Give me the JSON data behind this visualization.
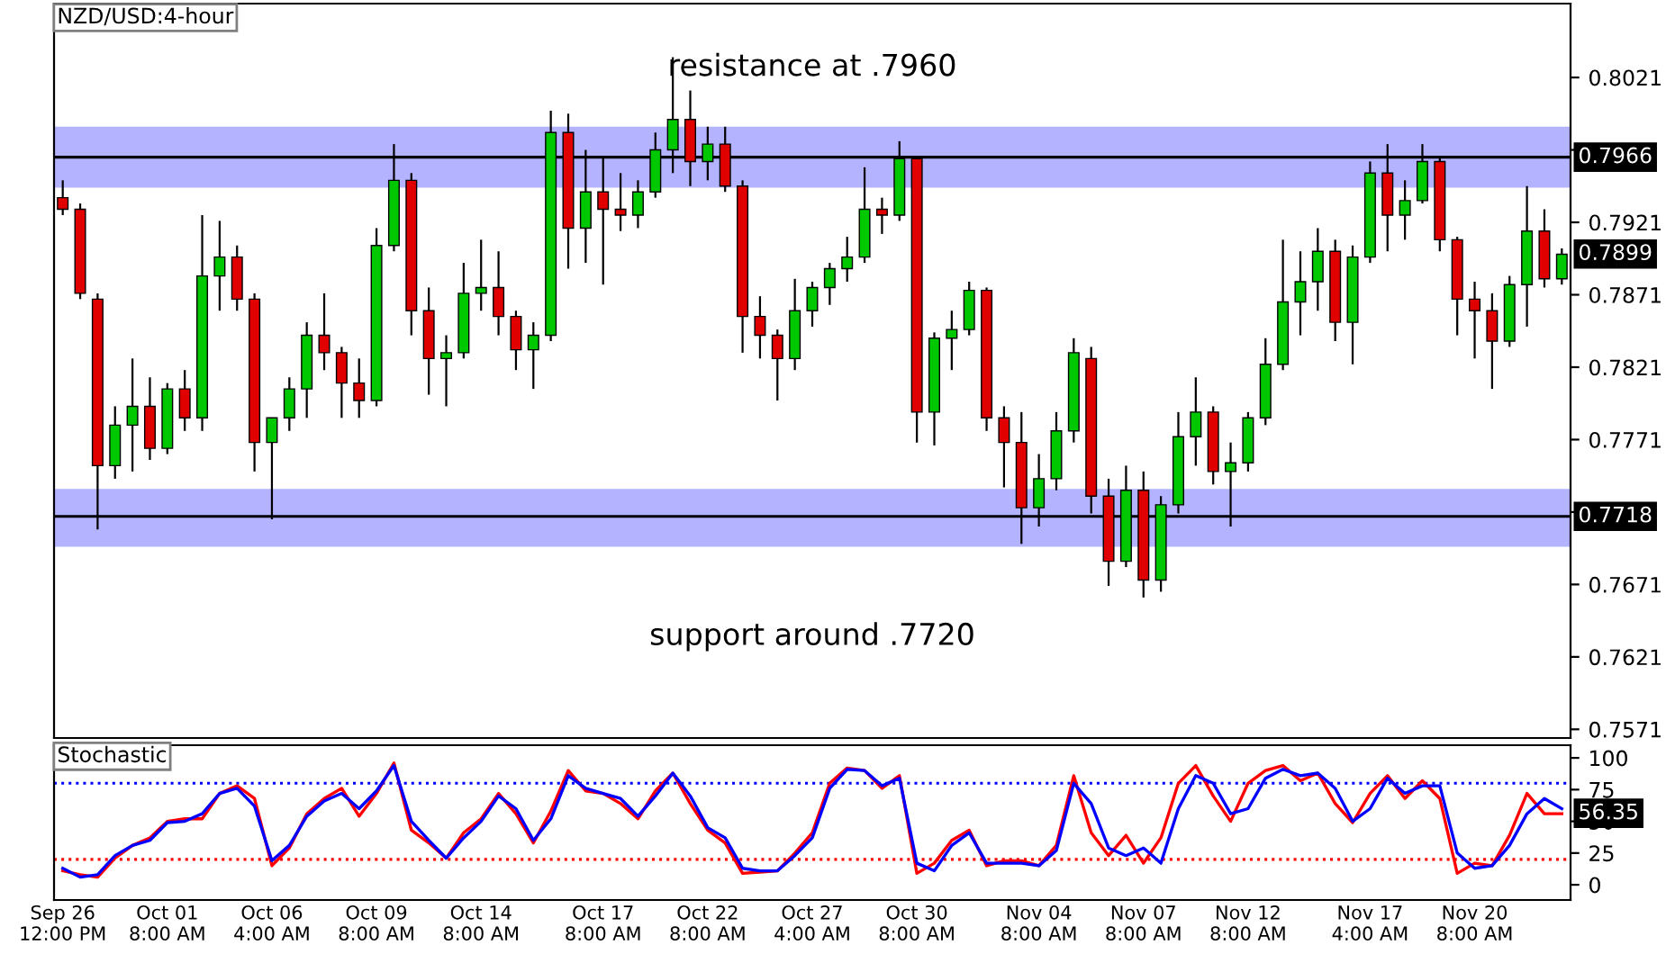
{
  "chart_data": [
    {
      "type": "candlestick",
      "title": "NZD/USD:4-hour",
      "categories": [
        null,
        null,
        null,
        null,
        null,
        null,
        null,
        null,
        null,
        null,
        null,
        null,
        null,
        null,
        null,
        null,
        null,
        null,
        null,
        null,
        null,
        null,
        null,
        null,
        null,
        null,
        null,
        null,
        null,
        null,
        null,
        null,
        null,
        null,
        null,
        null,
        null,
        null,
        null,
        null,
        null,
        null,
        null,
        null,
        null,
        null,
        null,
        null,
        null,
        null,
        null,
        null,
        null,
        null,
        null,
        null,
        null,
        null,
        null,
        null,
        null,
        null,
        null,
        null,
        null,
        null,
        null,
        null,
        null,
        null,
        null,
        null,
        null,
        null,
        null,
        null,
        null,
        null,
        null,
        null,
        null,
        null,
        null,
        null,
        null,
        null,
        null
      ],
      "ohlc": [
        [
          0.7938,
          0.795,
          0.7926,
          0.793
        ],
        [
          0.793,
          0.7934,
          0.7868,
          0.7872
        ],
        [
          0.7868,
          0.7872,
          0.7709,
          0.7753
        ],
        [
          0.7753,
          0.7794,
          0.7744,
          0.7781
        ],
        [
          0.7781,
          0.7827,
          0.7749,
          0.7794
        ],
        [
          0.7794,
          0.7814,
          0.7757,
          0.7765
        ],
        [
          0.7765,
          0.781,
          0.7761,
          0.7806
        ],
        [
          0.7806,
          0.7819,
          0.7777,
          0.7786
        ],
        [
          0.7786,
          0.7926,
          0.7777,
          0.7884
        ],
        [
          0.7884,
          0.7922,
          0.786,
          0.7897
        ],
        [
          0.7897,
          0.7905,
          0.786,
          0.7868
        ],
        [
          0.7868,
          0.7872,
          0.7749,
          0.7769
        ],
        [
          0.7769,
          0.7786,
          0.7716,
          0.7786
        ],
        [
          0.7786,
          0.7814,
          0.7777,
          0.7806
        ],
        [
          0.7806,
          0.7852,
          0.7786,
          0.7843
        ],
        [
          0.7843,
          0.7872,
          0.7819,
          0.7831
        ],
        [
          0.7831,
          0.7835,
          0.7786,
          0.781
        ],
        [
          0.781,
          0.7827,
          0.7786,
          0.7798
        ],
        [
          0.7798,
          0.7917,
          0.7794,
          0.7905
        ],
        [
          0.7905,
          0.7975,
          0.7901,
          0.795
        ],
        [
          0.795,
          0.7955,
          0.7843,
          0.786
        ],
        [
          0.786,
          0.7876,
          0.7802,
          0.7827
        ],
        [
          0.7827,
          0.7843,
          0.7794,
          0.7831
        ],
        [
          0.7831,
          0.7893,
          0.7827,
          0.7872
        ],
        [
          0.7872,
          0.7909,
          0.786,
          0.7876
        ],
        [
          0.7876,
          0.7901,
          0.7843,
          0.7856
        ],
        [
          0.7856,
          0.786,
          0.7819,
          0.7833
        ],
        [
          0.7833,
          0.7852,
          0.7806,
          0.7843
        ],
        [
          0.7843,
          0.7998,
          0.7839,
          0.7983
        ],
        [
          0.7983,
          0.7996,
          0.7889,
          0.7917
        ],
        [
          0.7917,
          0.7971,
          0.7893,
          0.7942
        ],
        [
          0.7942,
          0.7967,
          0.7878,
          0.793
        ],
        [
          0.793,
          0.7955,
          0.7915,
          0.7926
        ],
        [
          0.7926,
          0.795,
          0.7917,
          0.7942
        ],
        [
          0.7942,
          0.7983,
          0.7938,
          0.7971
        ],
        [
          0.7971,
          0.8035,
          0.7955,
          0.7992
        ],
        [
          0.7992,
          0.8012,
          0.7946,
          0.7963
        ],
        [
          0.7963,
          0.7987,
          0.795,
          0.7975
        ],
        [
          0.7975,
          0.7987,
          0.7942,
          0.7946
        ],
        [
          0.7946,
          0.795,
          0.7831,
          0.7856
        ],
        [
          0.7856,
          0.787,
          0.7827,
          0.7843
        ],
        [
          0.7843,
          0.7847,
          0.7798,
          0.7827
        ],
        [
          0.7827,
          0.7882,
          0.7819,
          0.786
        ],
        [
          0.786,
          0.788,
          0.7849,
          0.7876
        ],
        [
          0.7876,
          0.7893,
          0.7864,
          0.7889
        ],
        [
          0.7889,
          0.7911,
          0.788,
          0.7897
        ],
        [
          0.7897,
          0.7959,
          0.7893,
          0.793
        ],
        [
          0.793,
          0.7938,
          0.7913,
          0.7926
        ],
        [
          0.7926,
          0.7977,
          0.7922,
          0.7965
        ],
        [
          0.7965,
          0.7967,
          0.7769,
          0.779
        ],
        [
          0.779,
          0.7845,
          0.7767,
          0.7841
        ],
        [
          0.7841,
          0.786,
          0.7819,
          0.7847
        ],
        [
          0.7847,
          0.788,
          0.7843,
          0.7874
        ],
        [
          0.7874,
          0.7876,
          0.7777,
          0.7786
        ],
        [
          0.7786,
          0.7794,
          0.7738,
          0.7769
        ],
        [
          0.7769,
          0.779,
          0.7699,
          0.7724
        ],
        [
          0.7724,
          0.7761,
          0.7711,
          0.7744
        ],
        [
          0.7744,
          0.779,
          0.7736,
          0.7777
        ],
        [
          0.7777,
          0.7841,
          0.7769,
          0.7831
        ],
        [
          0.7827,
          0.7835,
          0.772,
          0.7732
        ],
        [
          0.7732,
          0.7744,
          0.767,
          0.7687
        ],
        [
          0.7687,
          0.7753,
          0.7683,
          0.7736
        ],
        [
          0.7736,
          0.7749,
          0.7662,
          0.7674
        ],
        [
          0.7674,
          0.7732,
          0.7666,
          0.7726
        ],
        [
          0.7726,
          0.779,
          0.772,
          0.7773
        ],
        [
          0.7773,
          0.7814,
          0.7753,
          0.779
        ],
        [
          0.779,
          0.7794,
          0.774,
          0.7749
        ],
        [
          0.7749,
          0.7769,
          0.7711,
          0.7755
        ],
        [
          0.7755,
          0.779,
          0.7749,
          0.7786
        ],
        [
          0.7786,
          0.7841,
          0.7781,
          0.7823
        ],
        [
          0.7823,
          0.7909,
          0.7819,
          0.7866
        ],
        [
          0.7866,
          0.7901,
          0.7843,
          0.788
        ],
        [
          0.788,
          0.7917,
          0.786,
          0.7901
        ],
        [
          0.7901,
          0.7909,
          0.7839,
          0.7852
        ],
        [
          0.7852,
          0.7905,
          0.7823,
          0.7897
        ],
        [
          0.7897,
          0.7963,
          0.7893,
          0.7955
        ],
        [
          0.7955,
          0.7975,
          0.7901,
          0.7926
        ],
        [
          0.7926,
          0.795,
          0.7909,
          0.7936
        ],
        [
          0.7936,
          0.7975,
          0.7934,
          0.7963
        ],
        [
          0.7963,
          0.7967,
          0.7901,
          0.7909
        ],
        [
          0.7909,
          0.7911,
          0.7843,
          0.7868
        ],
        [
          0.7868,
          0.788,
          0.7827,
          0.786
        ],
        [
          0.786,
          0.7872,
          0.7806,
          0.7839
        ],
        [
          0.7839,
          0.7884,
          0.7835,
          0.7878
        ],
        [
          0.7878,
          0.7946,
          0.7849,
          0.7915
        ],
        [
          0.7915,
          0.793,
          0.7876,
          0.7882
        ],
        [
          0.7882,
          0.7903,
          0.7878,
          0.7899
        ]
      ],
      "colors": [
        "#e00000",
        "#e00000",
        "#e00000",
        "#00c800",
        "#00c800",
        "#e00000",
        "#00c800",
        "#e00000",
        "#00c800",
        "#00c800",
        "#e00000",
        "#e00000",
        "#00c800",
        "#00c800",
        "#00c800",
        "#e00000",
        "#e00000",
        "#e00000",
        "#00c800",
        "#00c800",
        "#e00000",
        "#e00000",
        "#00c800",
        "#00c800",
        "#00c800",
        "#e00000",
        "#e00000",
        "#00c800",
        "#00c800",
        "#e00000",
        "#00c800",
        "#e00000",
        "#e00000",
        "#00c800",
        "#00c800",
        "#00c800",
        "#e00000",
        "#00c800",
        "#e00000",
        "#e00000",
        "#e00000",
        "#e00000",
        "#00c800",
        "#00c800",
        "#00c800",
        "#00c800",
        "#00c800",
        "#e00000",
        "#00c800",
        "#e00000",
        "#00c800",
        "#00c800",
        "#00c800",
        "#e00000",
        "#e00000",
        "#e00000",
        "#00c800",
        "#00c800",
        "#00c800",
        "#e00000",
        "#e00000",
        "#00c800",
        "#e00000",
        "#00c800",
        "#00c800",
        "#00c800",
        "#e00000",
        "#00c800",
        "#00c800",
        "#00c800",
        "#00c800",
        "#00c800",
        "#00c800",
        "#e00000",
        "#00c800",
        "#00c800",
        "#e00000",
        "#00c800",
        "#00c800",
        "#e00000",
        "#e00000",
        "#e00000",
        "#e00000",
        "#00c800",
        "#00c800",
        "#e00000",
        "#00c800"
      ],
      "ylim": [
        0.7565,
        0.8072
      ],
      "yticks": [
        0.8021,
        {
          "value": 0.7971,
          "label": null
        },
        0.7921,
        0.7871,
        0.7821,
        0.7771,
        {
          "value": 0.7721,
          "label": null
        },
        0.7671,
        0.7621,
        0.7571
      ],
      "bands": [
        {
          "axis": "y",
          "from": 0.7945,
          "to": 0.7987,
          "color": "#b3b3ff"
        },
        {
          "axis": "y",
          "from": 0.7697,
          "to": 0.7737,
          "color": "#b3b3ff"
        }
      ],
      "ref_lines": [
        {
          "axis": "y",
          "value": 0.7966,
          "label": "0.7966",
          "color": "#000000"
        },
        {
          "axis": "y",
          "value": 0.7718,
          "label": "0.7718",
          "color": "#000000"
        }
      ],
      "annotations": [
        "resistance at .7960",
        "support around .7720",
        "0.7899"
      ]
    },
    {
      "type": "line",
      "title": "Stochastic",
      "categories": [
        "Sep 26\n12:00 PM",
        null,
        null,
        null,
        null,
        null,
        "Oct 01\n8:00 AM",
        null,
        null,
        null,
        null,
        null,
        "Oct 06\n4:00 AM",
        null,
        null,
        null,
        null,
        null,
        "Oct 09\n8:00 AM",
        null,
        null,
        null,
        null,
        null,
        "Oct 14\n8:00 AM",
        null,
        null,
        null,
        null,
        null,
        null,
        "Oct 17\n8:00 AM",
        null,
        null,
        null,
        null,
        null,
        "Oct 22\n8:00 AM",
        null,
        null,
        null,
        null,
        null,
        "Oct 27\n4:00 AM",
        null,
        null,
        null,
        null,
        null,
        "Oct 30\n8:00 AM",
        null,
        null,
        null,
        null,
        null,
        null,
        "Nov 04\n8:00 AM",
        null,
        null,
        null,
        null,
        null,
        "Nov 07\n8:00 AM",
        null,
        null,
        null,
        null,
        null,
        "Nov 12\n8:00 AM",
        null,
        null,
        null,
        null,
        null,
        null,
        "Nov 17\n4:00 AM",
        null,
        null,
        null,
        null,
        null,
        "Nov 20\n8:00 AM",
        null,
        null,
        null,
        null,
        null
      ],
      "series": [
        {
          "color": "#ff0000",
          "values": [
            11,
            8,
            6,
            21,
            31,
            37,
            50,
            52,
            52,
            72,
            78,
            68,
            15,
            29,
            56,
            68,
            76,
            54,
            72,
            96,
            43,
            33,
            21,
            41,
            52,
            72,
            56,
            33,
            58,
            90,
            74,
            72,
            64,
            52,
            74,
            88,
            64,
            43,
            33,
            9,
            10,
            11,
            25,
            41,
            80,
            92,
            90,
            76,
            86,
            9,
            17,
            35,
            43,
            15,
            19,
            19,
            15,
            31,
            86,
            41,
            23,
            39,
            17,
            37,
            80,
            94,
            70,
            50,
            80,
            90,
            94,
            82,
            88,
            64,
            49,
            72,
            86,
            68,
            82,
            68,
            9,
            17,
            15,
            39,
            72,
            56,
            56
          ]
        },
        {
          "color": "#0000ff",
          "values": [
            13,
            6,
            8,
            23,
            31,
            35,
            49,
            50,
            56,
            72,
            76,
            62,
            19,
            31,
            54,
            66,
            72,
            60,
            74,
            94,
            50,
            35,
            21,
            37,
            50,
            70,
            60,
            35,
            52,
            86,
            76,
            72,
            68,
            54,
            70,
            88,
            70,
            45,
            37,
            13,
            11,
            11,
            23,
            37,
            76,
            91,
            90,
            78,
            84,
            17,
            11,
            31,
            41,
            17,
            17,
            17,
            15,
            27,
            80,
            64,
            29,
            23,
            29,
            17,
            60,
            86,
            80,
            56,
            60,
            84,
            91,
            86,
            88,
            76,
            50,
            60,
            84,
            72,
            78,
            78,
            25,
            13,
            15,
            31,
            56,
            68,
            60
          ]
        }
      ],
      "ylim": [
        -12,
        110
      ],
      "yticks": [
        0,
        25,
        50,
        75,
        100
      ],
      "ref_lines": [
        {
          "axis": "y",
          "value": 80,
          "color": "#0000ff",
          "line_style": "dotted"
        },
        {
          "axis": "y",
          "value": 20,
          "color": "#ff0000",
          "line_style": "dotted"
        }
      ],
      "annotations": [
        "56.35"
      ]
    }
  ]
}
